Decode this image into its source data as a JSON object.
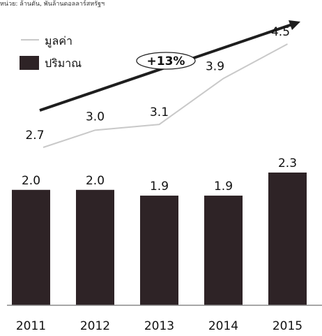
{
  "header_note": "หน่วย: ล้านตัน, พันล้านดอลลาร์สหรัฐฯ",
  "growth_badge": "+13%",
  "colors": {
    "bar": "#2e2326",
    "line": "#c9c9c9",
    "arrow": "#1e1e1e",
    "axis": "#8a8a8a",
    "text": "#111111"
  },
  "chart_data": {
    "type": "bar",
    "categories": [
      "2011",
      "2012",
      "2013",
      "2014",
      "2015"
    ],
    "series": [
      {
        "name": "ปริมาณ",
        "type": "bar",
        "values": [
          2.0,
          2.0,
          1.9,
          1.9,
          2.3
        ]
      },
      {
        "name": "มูลค่า",
        "type": "line",
        "values": [
          2.7,
          3.0,
          3.1,
          3.9,
          4.5
        ]
      }
    ],
    "value_labels": {
      "bar": [
        "2.0",
        "2.0",
        "1.9",
        "1.9",
        "2.3"
      ],
      "line": [
        "2.7",
        "3.0",
        "3.1",
        "3.9",
        "4.5"
      ]
    },
    "legend": [
      {
        "label": "มูลค่า",
        "kind": "line"
      },
      {
        "label": "ปริมาณ",
        "kind": "bar"
      }
    ],
    "legend_position": "top-left",
    "annotations": [
      "+13%"
    ],
    "trend_arrow": true,
    "grid": false,
    "bar_ylim": [
      0,
      2.3
    ],
    "line_ylim": [
      2.7,
      4.5
    ]
  }
}
